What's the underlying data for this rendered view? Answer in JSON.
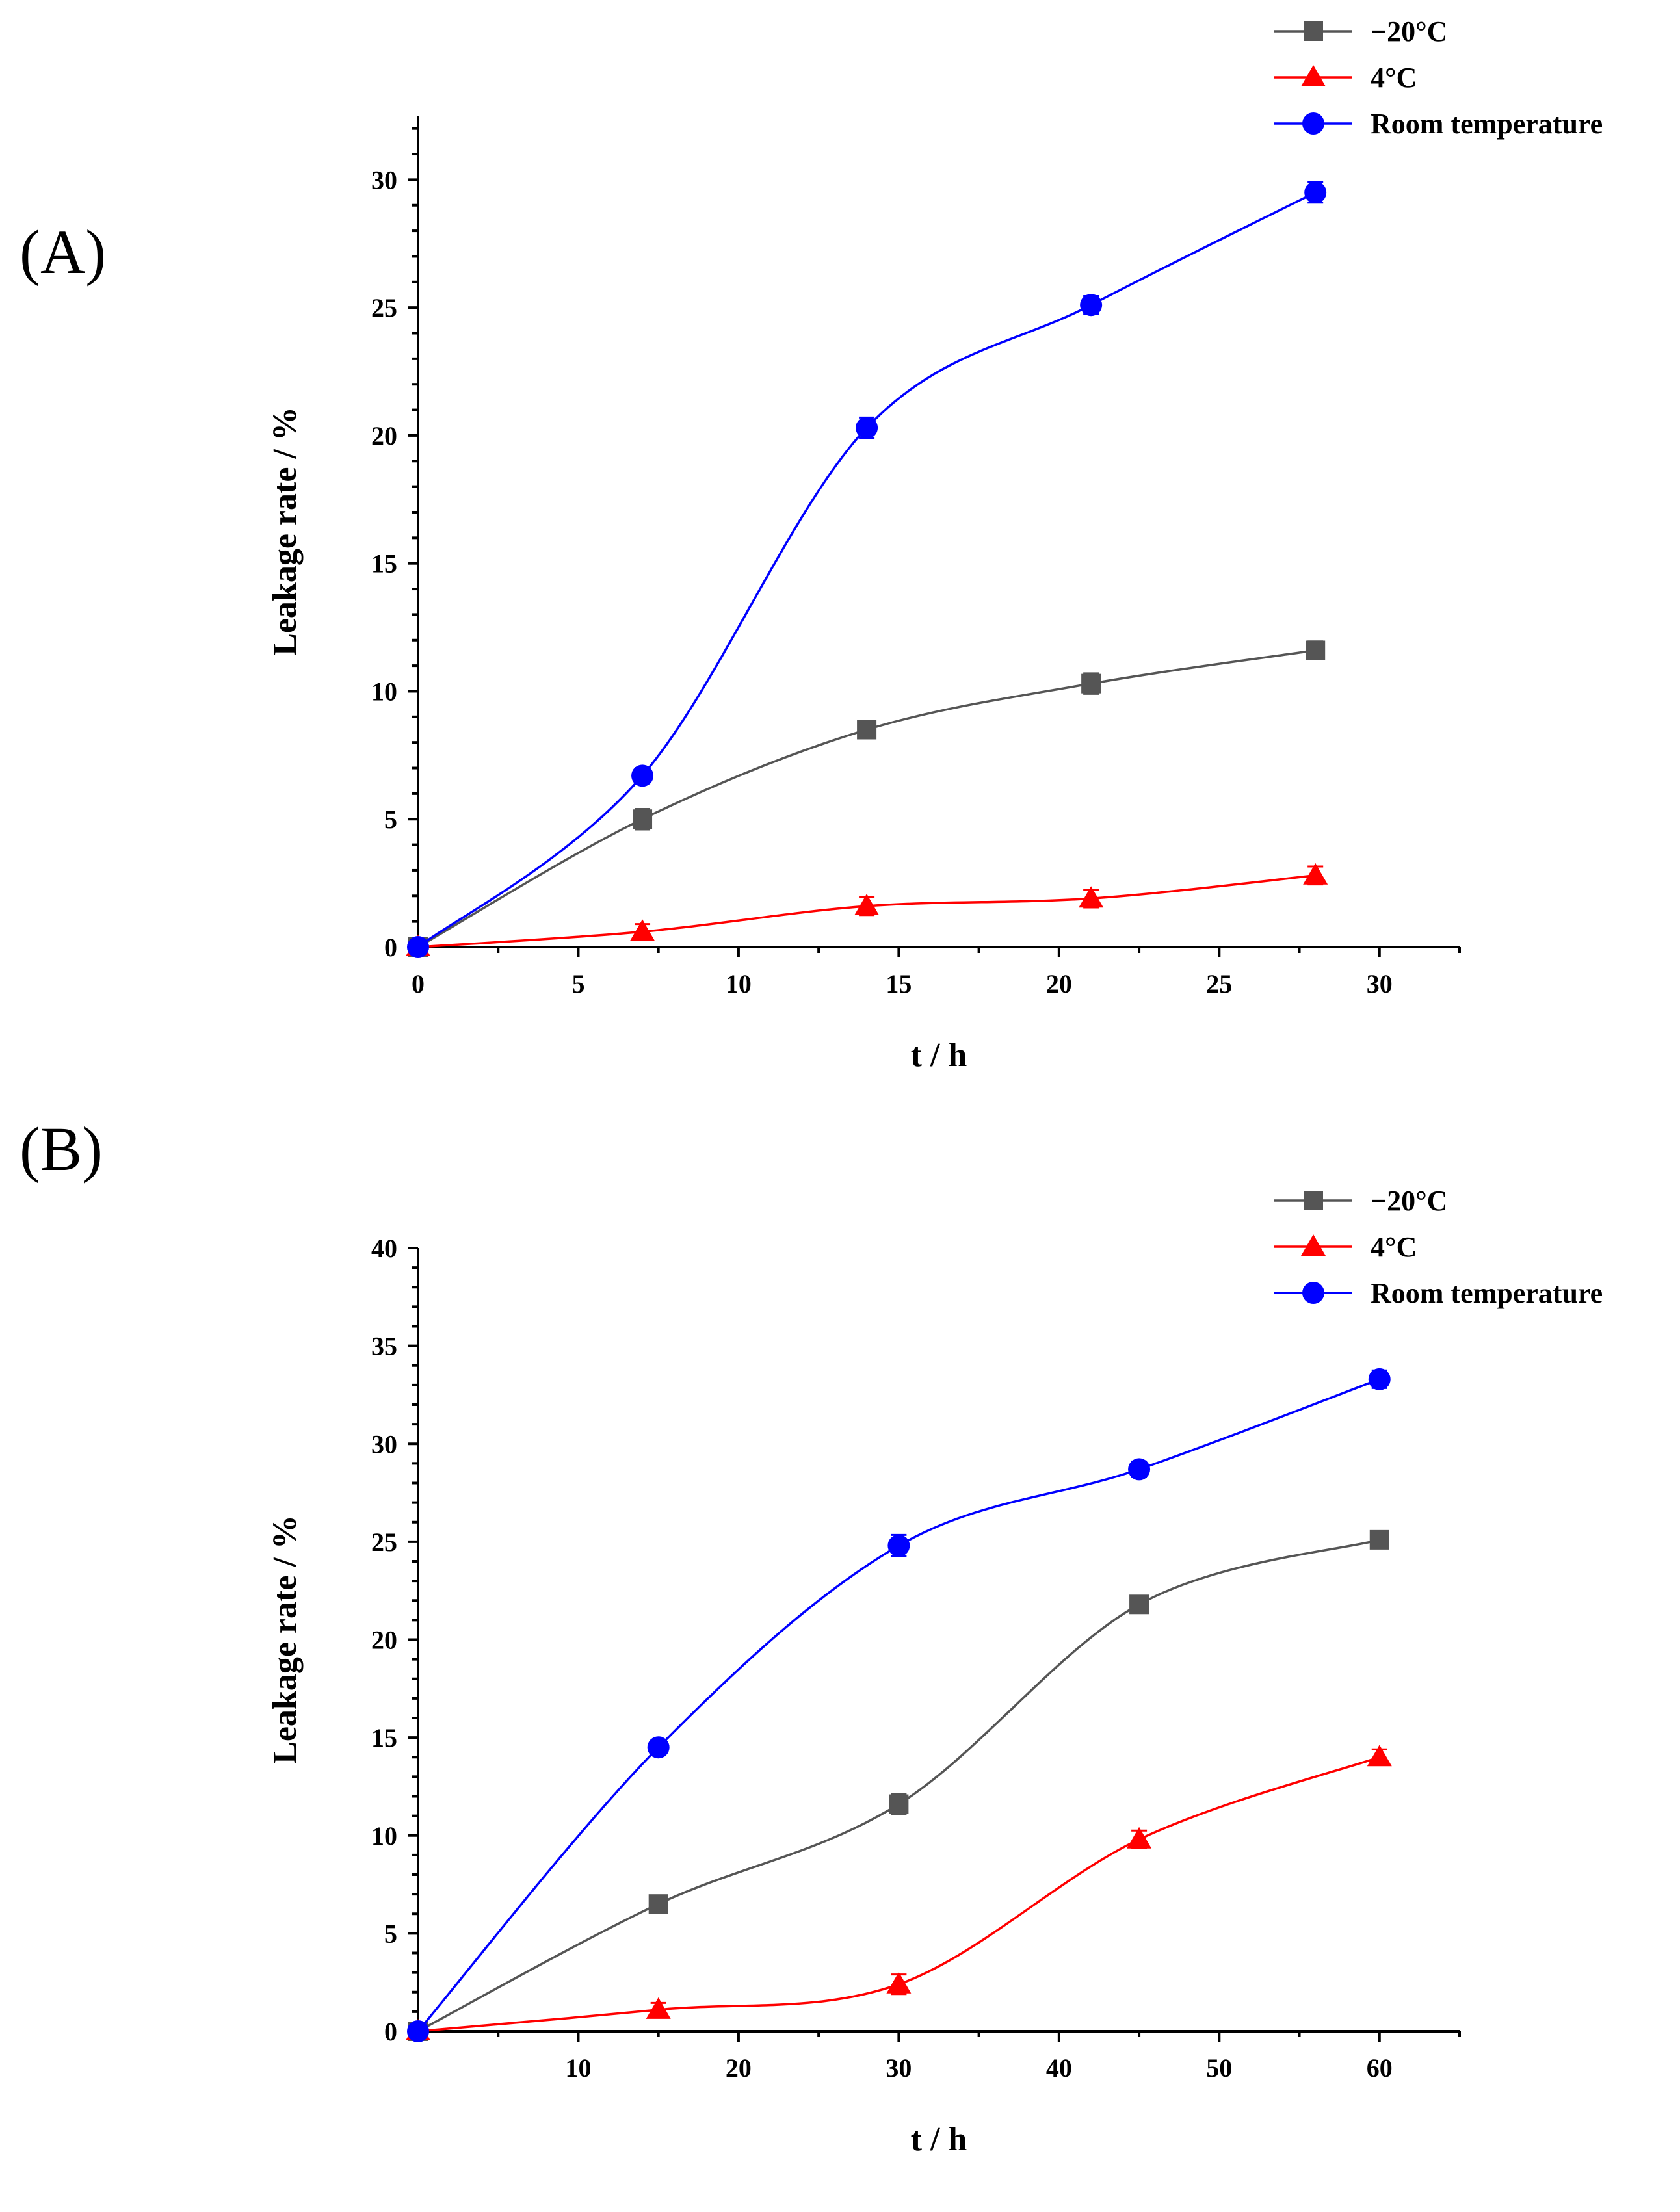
{
  "chart_data": [
    {
      "panel_label": "(A)",
      "type": "line",
      "title": "",
      "xlabel": "t / h",
      "ylabel": "Leakage rate /  %",
      "xlim": [
        0,
        32.5
      ],
      "ylim": [
        0,
        32.5
      ],
      "xticks": [
        0,
        5,
        10,
        15,
        20,
        25,
        30
      ],
      "yticks": [
        0,
        5,
        10,
        15,
        20,
        25,
        30
      ],
      "show_zero_xtick": true,
      "grid": false,
      "legend_position": "top-right",
      "x": [
        0,
        7,
        14,
        21,
        28
      ],
      "series": [
        {
          "name": "−20°C",
          "color": "#555555",
          "marker": "square",
          "values": [
            0,
            5.0,
            8.5,
            10.3,
            11.6
          ],
          "errors": [
            0,
            0.4,
            0.3,
            0.4,
            0.35
          ]
        },
        {
          "name": "4°C",
          "color": "#ff0000",
          "marker": "triangle",
          "values": [
            0,
            0.6,
            1.6,
            1.9,
            2.8
          ],
          "errors": [
            0,
            0.3,
            0.35,
            0.35,
            0.35
          ]
        },
        {
          "name": "Room temperature",
          "color": "#0000ff",
          "marker": "circle",
          "values": [
            0,
            6.7,
            20.3,
            25.1,
            29.5
          ],
          "errors": [
            0,
            0.3,
            0.4,
            0.35,
            0.4
          ]
        }
      ]
    },
    {
      "panel_label": "(B)",
      "type": "line",
      "title": "",
      "xlabel": "t / h",
      "ylabel": "Leakage rate / %",
      "xlim": [
        0,
        65
      ],
      "ylim": [
        0,
        40
      ],
      "xticks": [
        10,
        20,
        30,
        40,
        50,
        60
      ],
      "yticks": [
        0,
        5,
        10,
        15,
        20,
        25,
        30,
        35,
        40
      ],
      "show_zero_xtick": false,
      "grid": false,
      "legend_position": "top-right",
      "x": [
        0,
        15,
        30,
        45,
        60
      ],
      "series": [
        {
          "name": "−20°C",
          "color": "#555555",
          "marker": "square",
          "values": [
            0,
            6.5,
            11.6,
            21.8,
            25.1
          ],
          "errors": [
            0,
            0.4,
            0.5,
            0.4,
            0.35
          ]
        },
        {
          "name": "4°C",
          "color": "#ff0000",
          "marker": "triangle",
          "values": [
            0,
            1.1,
            2.4,
            9.8,
            14.0
          ],
          "errors": [
            0,
            0.35,
            0.5,
            0.45,
            0.4
          ]
        },
        {
          "name": "Room temperature",
          "color": "#0000ff",
          "marker": "circle",
          "values": [
            0,
            14.5,
            24.8,
            28.7,
            33.3
          ],
          "errors": [
            0,
            0.35,
            0.55,
            0.4,
            0.45
          ]
        }
      ]
    }
  ]
}
